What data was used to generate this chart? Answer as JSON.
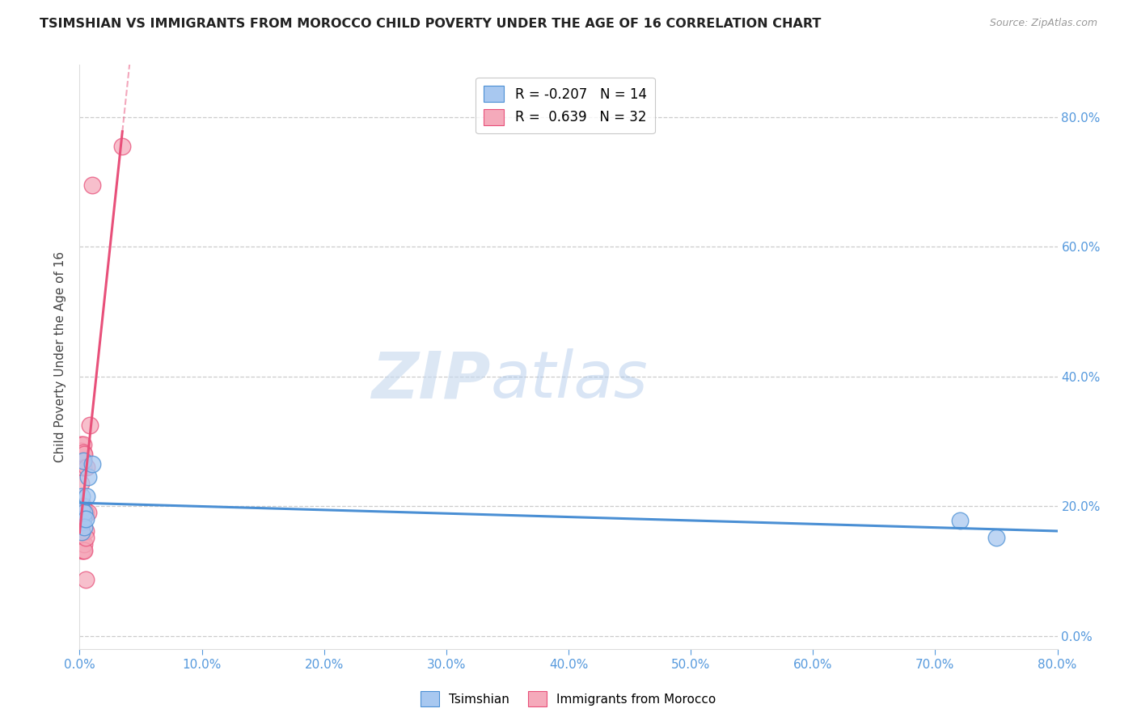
{
  "title": "TSIMSHIAN VS IMMIGRANTS FROM MOROCCO CHILD POVERTY UNDER THE AGE OF 16 CORRELATION CHART",
  "source": "Source: ZipAtlas.com",
  "ylabel": "Child Poverty Under the Age of 16",
  "xlabel": "",
  "xlim": [
    0,
    0.8
  ],
  "ylim": [
    -0.02,
    0.88
  ],
  "ytick_vals": [
    0.0,
    0.2,
    0.4,
    0.6,
    0.8
  ],
  "xtick_vals": [
    0.0,
    0.1,
    0.2,
    0.3,
    0.4,
    0.5,
    0.6,
    0.7,
    0.8
  ],
  "series1_name": "Tsimshian",
  "series1_color": "#A8C8F0",
  "series1_line_color": "#4A8FD4",
  "series1_R": "-0.207",
  "series1_N": "14",
  "series2_name": "Immigrants from Morocco",
  "series2_color": "#F5AABB",
  "series2_line_color": "#E8507A",
  "series2_R": "0.639",
  "series2_N": "32",
  "tsimshian_x": [
    0.002,
    0.002,
    0.002,
    0.002,
    0.003,
    0.003,
    0.004,
    0.004,
    0.005,
    0.006,
    0.007,
    0.01,
    0.72,
    0.75
  ],
  "tsimshian_y": [
    0.215,
    0.195,
    0.175,
    0.16,
    0.27,
    0.18,
    0.19,
    0.168,
    0.18,
    0.215,
    0.245,
    0.265,
    0.178,
    0.152
  ],
  "morocco_x": [
    0.001,
    0.001,
    0.001,
    0.001,
    0.001,
    0.002,
    0.002,
    0.002,
    0.002,
    0.002,
    0.002,
    0.002,
    0.003,
    0.003,
    0.003,
    0.003,
    0.003,
    0.003,
    0.003,
    0.004,
    0.004,
    0.004,
    0.004,
    0.005,
    0.005,
    0.005,
    0.005,
    0.006,
    0.007,
    0.008,
    0.01,
    0.035
  ],
  "morocco_y": [
    0.295,
    0.285,
    0.275,
    0.235,
    0.19,
    0.19,
    0.182,
    0.172,
    0.162,
    0.152,
    0.142,
    0.132,
    0.295,
    0.282,
    0.27,
    0.26,
    0.2,
    0.19,
    0.132,
    0.28,
    0.19,
    0.142,
    0.132,
    0.19,
    0.162,
    0.152,
    0.087,
    0.26,
    0.19,
    0.325,
    0.695,
    0.755
  ],
  "watermark_zip": "ZIP",
  "watermark_atlas": "atlas",
  "background_color": "#ffffff"
}
